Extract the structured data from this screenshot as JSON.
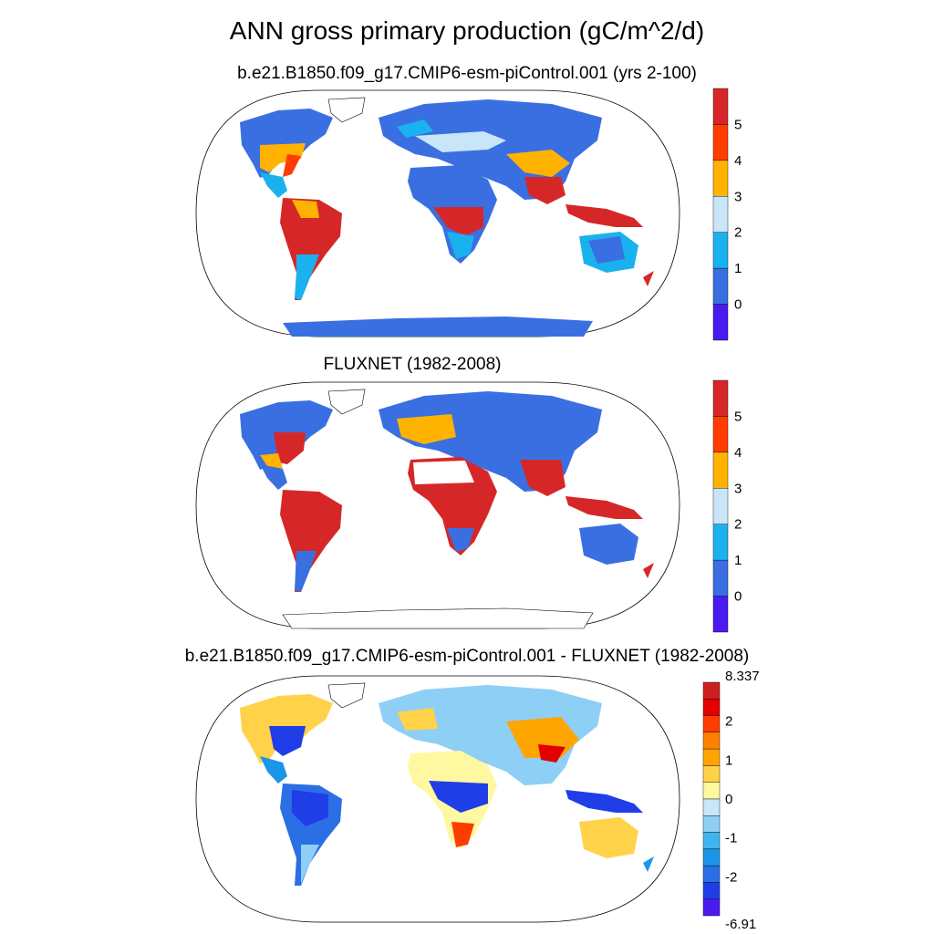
{
  "title": "ANN gross primary production (gC/m^2/d)",
  "panels": [
    {
      "id": "model",
      "subtitle": "b.e21.B1850.f09_g17.CMIP6-esm-piControl.001 (yrs 2-100)",
      "colorbar": {
        "colors": [
          "#d62728",
          "#ff3d00",
          "#ffb300",
          "#c8e6f7",
          "#1ab2ee",
          "#3a6fe2",
          "#4b1af0"
        ],
        "labels": [
          "5",
          "4",
          "3",
          "2",
          "1",
          "0"
        ]
      }
    },
    {
      "id": "obs",
      "subtitle": "FLUXNET (1982-2008)",
      "colorbar": {
        "colors": [
          "#d62728",
          "#ff3d00",
          "#ffb300",
          "#c8e6f7",
          "#1ab2ee",
          "#3a6fe2",
          "#4b1af0"
        ],
        "labels": [
          "5",
          "4",
          "3",
          "2",
          "1",
          "0"
        ]
      }
    },
    {
      "id": "diff",
      "subtitle": "b.e21.B1850.f09_g17.CMIP6-esm-piControl.001 - FLUXNET (1982-2008)",
      "colorbar": {
        "colors": [
          "#cc2020",
          "#e20000",
          "#ff3d00",
          "#ff7f00",
          "#ffa500",
          "#ffd24a",
          "#fff8a0",
          "#c8e6f7",
          "#8ecff5",
          "#3fb6f0",
          "#1a96e8",
          "#2a6fe4",
          "#1f3ee8",
          "#4a1af0"
        ],
        "labels": [
          "8.337",
          "2",
          "1",
          "0",
          "-1",
          "-2",
          "-6.91"
        ]
      }
    }
  ]
}
